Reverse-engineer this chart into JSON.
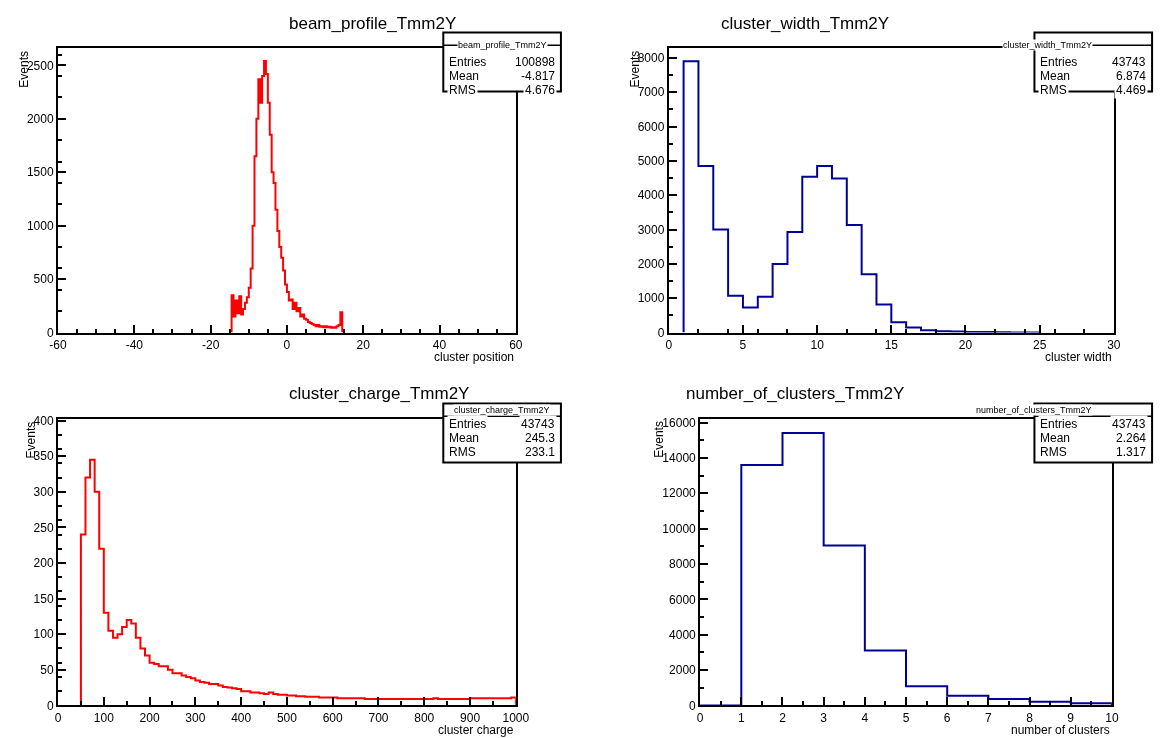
{
  "chart_data": [
    {
      "type": "histogram",
      "title": "beam_profile_Tmm2Y",
      "xlabel": "cluster position",
      "ylabel": "Events",
      "color": "#ff0000",
      "annotations": [
        "beam_profile_Tmm2Y",
        "Entries 100898",
        "Mean -4.817",
        "RMS 4.676"
      ],
      "bins": [
        -14.5,
        -14,
        -13.5,
        -13,
        -12.5,
        -12,
        -11.5,
        -11,
        -10.5,
        -10,
        -9.5,
        -9,
        -8.5,
        -8,
        -7.5,
        -7,
        -6.5,
        -6,
        -5.5,
        -5,
        -4.5,
        -4,
        -3.5,
        -3,
        -2.5,
        -2,
        -1.5,
        -1,
        -0.5,
        0,
        0.5,
        1,
        1.5,
        2,
        2.5,
        3,
        3.5,
        4,
        4.5,
        5,
        5.5,
        6,
        6.5,
        7,
        7.5,
        8,
        8.5,
        9,
        9.5,
        10,
        10.5,
        11,
        11.5,
        12,
        12.5,
        13,
        13.5,
        14,
        14.5
      ],
      "values": [
        350,
        150,
        300,
        180,
        340,
        170,
        220,
        280,
        330,
        420,
        600,
        1000,
        1650,
        2000,
        2370,
        2150,
        2400,
        2540,
        2420,
        2150,
        1850,
        1500,
        1400,
        1150,
        950,
        800,
        700,
        580,
        450,
        380,
        300,
        310,
        220,
        280,
        200,
        230,
        150,
        170,
        130,
        120,
        100,
        90,
        80,
        70,
        60,
        70,
        55,
        60,
        50,
        60,
        50,
        55,
        45,
        50,
        45,
        60,
        70,
        190
      ],
      "xlim": [
        -60,
        60
      ],
      "xticks": [
        -60,
        -40,
        -20,
        0,
        20,
        40,
        60
      ],
      "ylim": [
        0,
        2660
      ],
      "yticks": [
        0,
        500,
        1000,
        1500,
        2000,
        2500
      ]
    },
    {
      "type": "histogram",
      "title": "cluster_width_Tmm2Y",
      "xlabel": "cluster width",
      "ylabel": "Events",
      "color": "#000099",
      "annotations": [
        "cluster_width_Tmm2Y",
        "Entries 43743",
        "Mean 6.874",
        "RMS 4.469"
      ],
      "bins": [
        1,
        2,
        3,
        4,
        5,
        6,
        7,
        8,
        9,
        10,
        11,
        12,
        13,
        14,
        15,
        16,
        17,
        18,
        19,
        20,
        21,
        22,
        23,
        24,
        25
      ],
      "values": [
        7900,
        4850,
        3000,
        1070,
        730,
        1040,
        2000,
        2930,
        4540,
        4850,
        4490,
        3130,
        1700,
        820,
        300,
        150,
        70,
        40,
        30,
        20,
        15,
        10,
        5,
        5
      ],
      "xlim": [
        0,
        30
      ],
      "xticks": [
        0,
        5,
        10,
        15,
        20,
        25,
        30
      ],
      "ylim": [
        0,
        8280
      ],
      "yticks": [
        0,
        1000,
        2000,
        3000,
        4000,
        5000,
        6000,
        7000,
        8000
      ]
    },
    {
      "type": "histogram",
      "title": "cluster_charge_Tmm2Y",
      "xlabel": "cluster charge",
      "ylabel": "Events",
      "color": "#ff0000",
      "annotations": [
        "cluster_charge_Tmm2Y",
        "Entries 43743",
        "Mean 245.3",
        "RMS 233.1"
      ],
      "bins": [
        50,
        60,
        70,
        80,
        90,
        100,
        110,
        120,
        130,
        140,
        150,
        160,
        170,
        180,
        190,
        200,
        210,
        220,
        230,
        240,
        250,
        260,
        270,
        280,
        290,
        300,
        310,
        320,
        330,
        340,
        350,
        360,
        370,
        380,
        390,
        400,
        410,
        420,
        430,
        440,
        450,
        460,
        470,
        480,
        490,
        500,
        510,
        520,
        530,
        540,
        550,
        560,
        570,
        580,
        590,
        600,
        610,
        620,
        630,
        640,
        650,
        660,
        670,
        680,
        690,
        700,
        710,
        720,
        730,
        740,
        750,
        760,
        770,
        780,
        790,
        800,
        810,
        820,
        830,
        840,
        850,
        860,
        870,
        880,
        890,
        900,
        910,
        920,
        930,
        940,
        950,
        960,
        970,
        980,
        990,
        1000
      ],
      "values": [
        240,
        320,
        345,
        300,
        220,
        130,
        105,
        95,
        100,
        110,
        120,
        115,
        95,
        80,
        70,
        60,
        58,
        55,
        55,
        50,
        45,
        45,
        42,
        40,
        38,
        35,
        33,
        32,
        30,
        30,
        28,
        26,
        25,
        24,
        23,
        20,
        20,
        18,
        18,
        17,
        16,
        18,
        16,
        15,
        15,
        14,
        14,
        13,
        13,
        12,
        12,
        12,
        11,
        11,
        11,
        11,
        10,
        10,
        10,
        10,
        10,
        10,
        9,
        9,
        9,
        9,
        9,
        9,
        9,
        9,
        9,
        9,
        9,
        9,
        9,
        9,
        9,
        10,
        9,
        9,
        9,
        9,
        9,
        9,
        9,
        10,
        10,
        10,
        10,
        10,
        10,
        10,
        10,
        10,
        11
      ],
      "xlim": [
        0,
        1000
      ],
      "xticks": [
        0,
        100,
        200,
        300,
        400,
        500,
        600,
        700,
        800,
        900,
        1000
      ],
      "ylim": [
        0,
        402
      ],
      "yticks": [
        0,
        50,
        100,
        150,
        200,
        250,
        300,
        350,
        400
      ]
    },
    {
      "type": "histogram",
      "title": "number_of_clusters_Tmm2Y",
      "xlabel": "number of clusters",
      "ylabel": "Events",
      "color": "#000099",
      "annotations": [
        "number_of_clusters_Tmm2Y",
        "Entries 43743",
        "Mean 2.264",
        "RMS 1.317"
      ],
      "bins": [
        0,
        1,
        2,
        3,
        4,
        5,
        6,
        7,
        8,
        9,
        10
      ],
      "values": [
        0,
        13600,
        15400,
        9050,
        3100,
        1080,
        540,
        370,
        210,
        120
      ],
      "xlim": [
        0,
        10
      ],
      "xticks": [
        0,
        1,
        2,
        3,
        4,
        5,
        6,
        7,
        8,
        9,
        10
      ],
      "ylim": [
        0,
        16190
      ],
      "yticks": [
        0,
        2000,
        4000,
        6000,
        8000,
        10000,
        12000,
        14000,
        16000
      ]
    }
  ]
}
